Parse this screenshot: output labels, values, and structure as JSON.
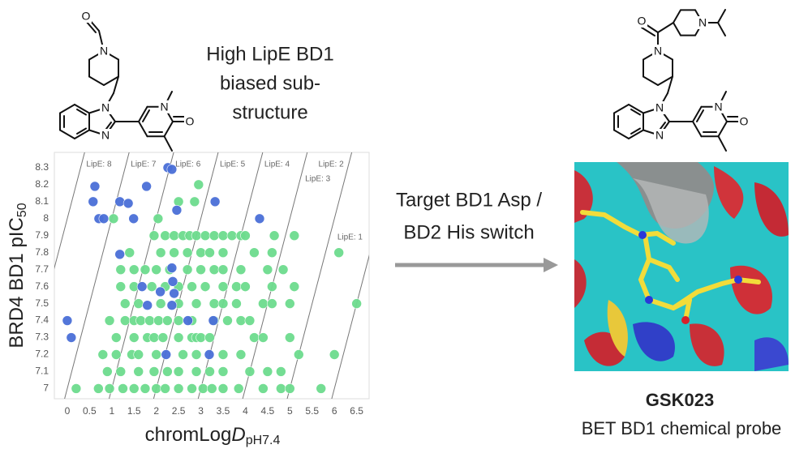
{
  "header": {
    "lines": [
      "High LipE BD1",
      "biased sub-",
      "structure"
    ]
  },
  "arrow_text": {
    "lines": [
      "Target BD1 Asp /",
      "BD2 His switch"
    ]
  },
  "probe": {
    "name": "GSK023",
    "description": "BET BD1 chemical probe"
  },
  "left_molecule": {
    "atoms": [
      "O",
      "N",
      "N",
      "N",
      "N",
      "O"
    ]
  },
  "right_molecule": {
    "atoms": [
      "O",
      "N",
      "N",
      "N",
      "N",
      "N",
      "O"
    ]
  },
  "chart_data": {
    "type": "scatter",
    "ylabel": {
      "main": "BRD4 BD1 pIC",
      "sub": "50"
    },
    "xlabel": {
      "main": "chromLog",
      "italic": "D",
      "sub": "pH7.4"
    },
    "xlim": [
      -0.29,
      6.78
    ],
    "ylim": [
      6.94,
      8.39
    ],
    "xticks": [
      0,
      0.5,
      1,
      1.5,
      2,
      2.5,
      3,
      3.5,
      4,
      4.5,
      5,
      5.5,
      6,
      6.5
    ],
    "yticks": [
      7,
      7.1,
      7.2,
      7.3,
      7.4,
      7.5,
      7.6,
      7.7,
      7.8,
      7.9,
      8,
      8.1,
      8.2,
      8.3
    ],
    "grid": false,
    "lipe_lines": [
      {
        "value": 8,
        "label": "LipE: 8"
      },
      {
        "value": 7,
        "label": "LipE: 7"
      },
      {
        "value": 6,
        "label": "LipE: 6"
      },
      {
        "value": 5,
        "label": "LipE: 5"
      },
      {
        "value": 4,
        "label": "LipE: 4"
      },
      {
        "value": 3,
        "label": "LipE: 3"
      },
      {
        "value": 2,
        "label": "LipE: 2"
      },
      {
        "value": 1,
        "label": "LipE: 1"
      }
    ],
    "series": [
      {
        "color": "#6ddc8e",
        "x": [
          2.95,
          2.5,
          2.86,
          1.04,
          2.04,
          1.95,
          2.2,
          2.4,
          2.6,
          2.75,
          2.9,
          3.1,
          3.3,
          3.5,
          3.7,
          3.9,
          4.0,
          4.65,
          5.1,
          1.4,
          2.1,
          2.4,
          2.7,
          3.0,
          3.2,
          3.5,
          4.2,
          4.6,
          6.1,
          1.2,
          1.5,
          1.75,
          2.0,
          2.3,
          2.7,
          3.0,
          3.3,
          3.5,
          3.9,
          4.5,
          4.85,
          1.2,
          1.5,
          1.9,
          2.2,
          2.5,
          2.8,
          3.1,
          3.5,
          3.8,
          4.0,
          4.6,
          5.1,
          1.3,
          1.6,
          2.1,
          2.5,
          2.9,
          3.3,
          3.5,
          3.8,
          4.4,
          4.6,
          5.0,
          6.5,
          0.95,
          1.3,
          1.5,
          1.65,
          1.85,
          2.05,
          2.25,
          2.5,
          2.8,
          3.3,
          3.6,
          3.9,
          4.1,
          1.1,
          1.5,
          1.8,
          1.95,
          2.15,
          2.5,
          2.8,
          2.9,
          3.0,
          3.2,
          4.2,
          4.4,
          5.0,
          0.8,
          1.1,
          1.45,
          1.6,
          2.0,
          2.6,
          2.9,
          3.5,
          3.9,
          5.2,
          6.0,
          0.9,
          1.2,
          1.6,
          1.95,
          2.25,
          2.5,
          2.9,
          3.2,
          3.5,
          4.1,
          4.5,
          4.8,
          0.2,
          0.7,
          0.95,
          1.25,
          1.5,
          1.75,
          2.0,
          2.2,
          2.5,
          2.8,
          3.05,
          3.25,
          3.5,
          3.85,
          4.4,
          4.8,
          5.0,
          5.7
        ],
        "values": [
          8.2,
          8.1,
          8.1,
          8,
          8,
          7.9,
          7.9,
          7.9,
          7.9,
          7.9,
          7.9,
          7.9,
          7.9,
          7.9,
          7.9,
          7.9,
          7.9,
          7.9,
          7.9,
          7.8,
          7.8,
          7.8,
          7.8,
          7.8,
          7.8,
          7.8,
          7.8,
          7.8,
          7.8,
          7.7,
          7.7,
          7.7,
          7.7,
          7.7,
          7.7,
          7.7,
          7.7,
          7.7,
          7.7,
          7.7,
          7.7,
          7.6,
          7.6,
          7.6,
          7.6,
          7.6,
          7.6,
          7.6,
          7.6,
          7.6,
          7.6,
          7.6,
          7.6,
          7.5,
          7.5,
          7.5,
          7.5,
          7.5,
          7.5,
          7.5,
          7.5,
          7.5,
          7.5,
          7.5,
          7.5,
          7.4,
          7.4,
          7.4,
          7.4,
          7.4,
          7.4,
          7.4,
          7.4,
          7.4,
          7.4,
          7.4,
          7.4,
          7.4,
          7.3,
          7.3,
          7.3,
          7.3,
          7.3,
          7.3,
          7.3,
          7.3,
          7.3,
          7.3,
          7.3,
          7.3,
          7.3,
          7.2,
          7.2,
          7.2,
          7.2,
          7.2,
          7.2,
          7.2,
          7.2,
          7.2,
          7.2,
          7.2,
          7.1,
          7.1,
          7.1,
          7.1,
          7.1,
          7.1,
          7.1,
          7.1,
          7.1,
          7.1,
          7.1,
          7.1,
          7,
          7,
          7,
          7,
          7,
          7,
          7,
          7,
          7,
          7,
          7,
          7,
          7,
          7,
          7,
          7,
          7,
          7
        ]
      },
      {
        "color": "#4a6fd8",
        "x": [
          0.62,
          1.78,
          2.26,
          2.35,
          0.58,
          1.18,
          1.37,
          3.32,
          0.71,
          0.82,
          1.49,
          2.46,
          4.32,
          1.18,
          2.35,
          2.37,
          1.68,
          1.8,
          2.35,
          2.4,
          0,
          0.09,
          3.28,
          2.22,
          2.71,
          2.09,
          3.19
        ],
        "values": [
          8.19,
          8.19,
          8.3,
          8.29,
          8.1,
          8.1,
          8.09,
          8.1,
          8,
          8,
          8,
          8.05,
          8,
          7.79,
          7.71,
          7.63,
          7.6,
          7.49,
          7.49,
          7.56,
          7.4,
          7.3,
          7.4,
          7.2,
          7.4,
          7.57,
          7.2
        ]
      }
    ]
  }
}
